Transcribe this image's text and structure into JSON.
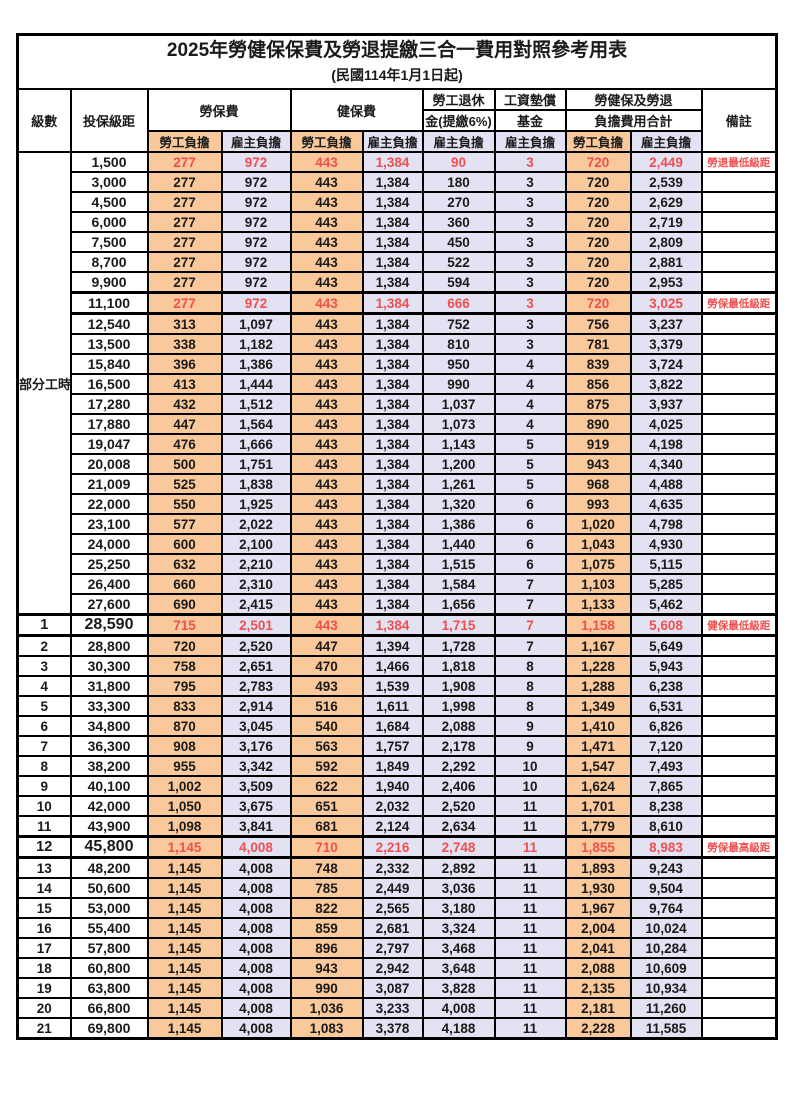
{
  "title": "2025年勞健保保費及勞退提繳三合一費用對照參考用表",
  "subtitle": "(民國114年1月1日起)",
  "colors": {
    "employee_burden_bg": "#F9C99C",
    "employer_burden_bg": "#E2E2F2",
    "highlight_red": "#F04F4F",
    "border": "#000000"
  },
  "header": {
    "level": "級數",
    "bracket": "投保級距",
    "labor_insurance": "勞保費",
    "health_insurance": "健保費",
    "pension_line1": "勞工退休",
    "pension_line2": "金(提繳6%)",
    "wage_fund_line1": "工資墊償",
    "wage_fund_line2": "基金",
    "total_line1": "勞健保及勞退",
    "total_line2": "負擔費用合計",
    "remark": "備註",
    "employee_burden": "勞工負擔",
    "employer_burden": "雇主負擔"
  },
  "part_time_label": "部分工時",
  "rows": [
    {
      "level": "",
      "bracket": "1,500",
      "v": [
        "277",
        "972",
        "443",
        "1,384",
        "90",
        "3",
        "720",
        "2,449"
      ],
      "note": "勞退最低級距",
      "red": true,
      "thick": false,
      "em": false
    },
    {
      "level": "",
      "bracket": "3,000",
      "v": [
        "277",
        "972",
        "443",
        "1,384",
        "180",
        "3",
        "720",
        "2,539"
      ],
      "note": "",
      "red": false,
      "thick": false,
      "em": false
    },
    {
      "level": "",
      "bracket": "4,500",
      "v": [
        "277",
        "972",
        "443",
        "1,384",
        "270",
        "3",
        "720",
        "2,629"
      ],
      "note": "",
      "red": false,
      "thick": false,
      "em": false
    },
    {
      "level": "",
      "bracket": "6,000",
      "v": [
        "277",
        "972",
        "443",
        "1,384",
        "360",
        "3",
        "720",
        "2,719"
      ],
      "note": "",
      "red": false,
      "thick": false,
      "em": false
    },
    {
      "level": "",
      "bracket": "7,500",
      "v": [
        "277",
        "972",
        "443",
        "1,384",
        "450",
        "3",
        "720",
        "2,809"
      ],
      "note": "",
      "red": false,
      "thick": false,
      "em": false
    },
    {
      "level": "",
      "bracket": "8,700",
      "v": [
        "277",
        "972",
        "443",
        "1,384",
        "522",
        "3",
        "720",
        "2,881"
      ],
      "note": "",
      "red": false,
      "thick": false,
      "em": false
    },
    {
      "level": "",
      "bracket": "9,900",
      "v": [
        "277",
        "972",
        "443",
        "1,384",
        "594",
        "3",
        "720",
        "2,953"
      ],
      "note": "",
      "red": false,
      "thick": false,
      "em": false
    },
    {
      "level": "",
      "bracket": "11,100",
      "v": [
        "277",
        "972",
        "443",
        "1,384",
        "666",
        "3",
        "720",
        "3,025"
      ],
      "note": "勞保最低級距",
      "red": true,
      "thick": true,
      "em": false
    },
    {
      "level": "",
      "bracket": "12,540",
      "v": [
        "313",
        "1,097",
        "443",
        "1,384",
        "752",
        "3",
        "756",
        "3,237"
      ],
      "note": "",
      "red": false,
      "thick": false,
      "em": false
    },
    {
      "level": "",
      "bracket": "13,500",
      "v": [
        "338",
        "1,182",
        "443",
        "1,384",
        "810",
        "3",
        "781",
        "3,379"
      ],
      "note": "",
      "red": false,
      "thick": false,
      "em": false
    },
    {
      "level": "",
      "bracket": "15,840",
      "v": [
        "396",
        "1,386",
        "443",
        "1,384",
        "950",
        "4",
        "839",
        "3,724"
      ],
      "note": "",
      "red": false,
      "thick": false,
      "em": false
    },
    {
      "level": "",
      "bracket": "16,500",
      "v": [
        "413",
        "1,444",
        "443",
        "1,384",
        "990",
        "4",
        "856",
        "3,822"
      ],
      "note": "",
      "red": false,
      "thick": false,
      "em": false
    },
    {
      "level": "",
      "bracket": "17,280",
      "v": [
        "432",
        "1,512",
        "443",
        "1,384",
        "1,037",
        "4",
        "875",
        "3,937"
      ],
      "note": "",
      "red": false,
      "thick": false,
      "em": false
    },
    {
      "level": "",
      "bracket": "17,880",
      "v": [
        "447",
        "1,564",
        "443",
        "1,384",
        "1,073",
        "4",
        "890",
        "4,025"
      ],
      "note": "",
      "red": false,
      "thick": false,
      "em": false
    },
    {
      "level": "",
      "bracket": "19,047",
      "v": [
        "476",
        "1,666",
        "443",
        "1,384",
        "1,143",
        "5",
        "919",
        "4,198"
      ],
      "note": "",
      "red": false,
      "thick": false,
      "em": false
    },
    {
      "level": "",
      "bracket": "20,008",
      "v": [
        "500",
        "1,751",
        "443",
        "1,384",
        "1,200",
        "5",
        "943",
        "4,340"
      ],
      "note": "",
      "red": false,
      "thick": false,
      "em": false
    },
    {
      "level": "",
      "bracket": "21,009",
      "v": [
        "525",
        "1,838",
        "443",
        "1,384",
        "1,261",
        "5",
        "968",
        "4,488"
      ],
      "note": "",
      "red": false,
      "thick": false,
      "em": false
    },
    {
      "level": "",
      "bracket": "22,000",
      "v": [
        "550",
        "1,925",
        "443",
        "1,384",
        "1,320",
        "6",
        "993",
        "4,635"
      ],
      "note": "",
      "red": false,
      "thick": false,
      "em": false
    },
    {
      "level": "",
      "bracket": "23,100",
      "v": [
        "577",
        "2,022",
        "443",
        "1,384",
        "1,386",
        "6",
        "1,020",
        "4,798"
      ],
      "note": "",
      "red": false,
      "thick": false,
      "em": false
    },
    {
      "level": "",
      "bracket": "24,000",
      "v": [
        "600",
        "2,100",
        "443",
        "1,384",
        "1,440",
        "6",
        "1,043",
        "4,930"
      ],
      "note": "",
      "red": false,
      "thick": false,
      "em": false
    },
    {
      "level": "",
      "bracket": "25,250",
      "v": [
        "632",
        "2,210",
        "443",
        "1,384",
        "1,515",
        "6",
        "1,075",
        "5,115"
      ],
      "note": "",
      "red": false,
      "thick": false,
      "em": false
    },
    {
      "level": "",
      "bracket": "26,400",
      "v": [
        "660",
        "2,310",
        "443",
        "1,384",
        "1,584",
        "7",
        "1,103",
        "5,285"
      ],
      "note": "",
      "red": false,
      "thick": false,
      "em": false
    },
    {
      "level": "",
      "bracket": "27,600",
      "v": [
        "690",
        "2,415",
        "443",
        "1,384",
        "1,656",
        "7",
        "1,133",
        "5,462"
      ],
      "note": "",
      "red": false,
      "thick": false,
      "em": false
    },
    {
      "level": "1",
      "bracket": "28,590",
      "v": [
        "715",
        "2,501",
        "443",
        "1,384",
        "1,715",
        "7",
        "1,158",
        "5,608"
      ],
      "note": "健保最低級距",
      "red": true,
      "thick": true,
      "em": true
    },
    {
      "level": "2",
      "bracket": "28,800",
      "v": [
        "720",
        "2,520",
        "447",
        "1,394",
        "1,728",
        "7",
        "1,167",
        "5,649"
      ],
      "note": "",
      "red": false,
      "thick": false,
      "em": false
    },
    {
      "level": "3",
      "bracket": "30,300",
      "v": [
        "758",
        "2,651",
        "470",
        "1,466",
        "1,818",
        "8",
        "1,228",
        "5,943"
      ],
      "note": "",
      "red": false,
      "thick": false,
      "em": false
    },
    {
      "level": "4",
      "bracket": "31,800",
      "v": [
        "795",
        "2,783",
        "493",
        "1,539",
        "1,908",
        "8",
        "1,288",
        "6,238"
      ],
      "note": "",
      "red": false,
      "thick": false,
      "em": false
    },
    {
      "level": "5",
      "bracket": "33,300",
      "v": [
        "833",
        "2,914",
        "516",
        "1,611",
        "1,998",
        "8",
        "1,349",
        "6,531"
      ],
      "note": "",
      "red": false,
      "thick": false,
      "em": false
    },
    {
      "level": "6",
      "bracket": "34,800",
      "v": [
        "870",
        "3,045",
        "540",
        "1,684",
        "2,088",
        "9",
        "1,410",
        "6,826"
      ],
      "note": "",
      "red": false,
      "thick": false,
      "em": false
    },
    {
      "level": "7",
      "bracket": "36,300",
      "v": [
        "908",
        "3,176",
        "563",
        "1,757",
        "2,178",
        "9",
        "1,471",
        "7,120"
      ],
      "note": "",
      "red": false,
      "thick": false,
      "em": false
    },
    {
      "level": "8",
      "bracket": "38,200",
      "v": [
        "955",
        "3,342",
        "592",
        "1,849",
        "2,292",
        "10",
        "1,547",
        "7,493"
      ],
      "note": "",
      "red": false,
      "thick": false,
      "em": false
    },
    {
      "level": "9",
      "bracket": "40,100",
      "v": [
        "1,002",
        "3,509",
        "622",
        "1,940",
        "2,406",
        "10",
        "1,624",
        "7,865"
      ],
      "note": "",
      "red": false,
      "thick": false,
      "em": false
    },
    {
      "level": "10",
      "bracket": "42,000",
      "v": [
        "1,050",
        "3,675",
        "651",
        "2,032",
        "2,520",
        "11",
        "1,701",
        "8,238"
      ],
      "note": "",
      "red": false,
      "thick": false,
      "em": false
    },
    {
      "level": "11",
      "bracket": "43,900",
      "v": [
        "1,098",
        "3,841",
        "681",
        "2,124",
        "2,634",
        "11",
        "1,779",
        "8,610"
      ],
      "note": "",
      "red": false,
      "thick": false,
      "em": false
    },
    {
      "level": "12",
      "bracket": "45,800",
      "v": [
        "1,145",
        "4,008",
        "710",
        "2,216",
        "2,748",
        "11",
        "1,855",
        "8,983"
      ],
      "note": "勞保最高級距",
      "red": true,
      "thick": true,
      "em": true
    },
    {
      "level": "13",
      "bracket": "48,200",
      "v": [
        "1,145",
        "4,008",
        "748",
        "2,332",
        "2,892",
        "11",
        "1,893",
        "9,243"
      ],
      "note": "",
      "red": false,
      "thick": false,
      "em": false
    },
    {
      "level": "14",
      "bracket": "50,600",
      "v": [
        "1,145",
        "4,008",
        "785",
        "2,449",
        "3,036",
        "11",
        "1,930",
        "9,504"
      ],
      "note": "",
      "red": false,
      "thick": false,
      "em": false
    },
    {
      "level": "15",
      "bracket": "53,000",
      "v": [
        "1,145",
        "4,008",
        "822",
        "2,565",
        "3,180",
        "11",
        "1,967",
        "9,764"
      ],
      "note": "",
      "red": false,
      "thick": false,
      "em": false
    },
    {
      "level": "16",
      "bracket": "55,400",
      "v": [
        "1,145",
        "4,008",
        "859",
        "2,681",
        "3,324",
        "11",
        "2,004",
        "10,024"
      ],
      "note": "",
      "red": false,
      "thick": false,
      "em": false
    },
    {
      "level": "17",
      "bracket": "57,800",
      "v": [
        "1,145",
        "4,008",
        "896",
        "2,797",
        "3,468",
        "11",
        "2,041",
        "10,284"
      ],
      "note": "",
      "red": false,
      "thick": false,
      "em": false
    },
    {
      "level": "18",
      "bracket": "60,800",
      "v": [
        "1,145",
        "4,008",
        "943",
        "2,942",
        "3,648",
        "11",
        "2,088",
        "10,609"
      ],
      "note": "",
      "red": false,
      "thick": false,
      "em": false
    },
    {
      "level": "19",
      "bracket": "63,800",
      "v": [
        "1,145",
        "4,008",
        "990",
        "3,087",
        "3,828",
        "11",
        "2,135",
        "10,934"
      ],
      "note": "",
      "red": false,
      "thick": false,
      "em": false
    },
    {
      "level": "20",
      "bracket": "66,800",
      "v": [
        "1,145",
        "4,008",
        "1,036",
        "3,233",
        "4,008",
        "11",
        "2,181",
        "11,260"
      ],
      "note": "",
      "red": false,
      "thick": false,
      "em": false
    },
    {
      "level": "21",
      "bracket": "69,800",
      "v": [
        "1,145",
        "4,008",
        "1,083",
        "3,378",
        "4,188",
        "11",
        "2,228",
        "11,585"
      ],
      "note": "",
      "red": false,
      "thick": false,
      "em": false
    }
  ],
  "column_kinds": [
    "lab",
    "emp",
    "lab",
    "emp",
    "emp",
    "emp",
    "lab",
    "emp"
  ]
}
